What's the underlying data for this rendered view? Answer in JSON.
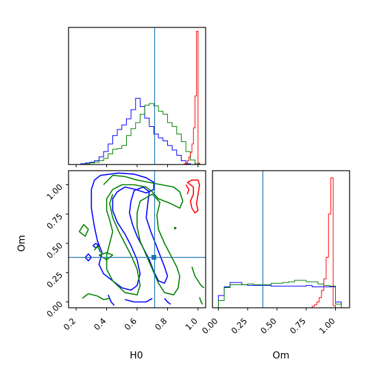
{
  "chart_data": {
    "type": "corner",
    "parameters": [
      "H0",
      "Om"
    ],
    "xlabel_h0": "H0",
    "xlabel_om": "Om",
    "ylabel_om": "Om",
    "truth": {
      "H0": 0.715,
      "Om": 0.38
    },
    "ranges": {
      "H0": [
        0.15,
        1.05
      ],
      "Om": [
        -0.05,
        1.12
      ]
    },
    "ticks": {
      "H0": [
        0.2,
        0.4,
        0.6,
        0.8,
        1.0
      ],
      "H0_labels": [
        "0.2",
        "0.4",
        "0.6",
        "0.8",
        "1.0"
      ],
      "Om": [
        0.0,
        0.25,
        0.5,
        0.75,
        1.0
      ],
      "Om_labels": [
        "0.00",
        "0.25",
        "0.50",
        "0.75",
        "1.00"
      ]
    },
    "colors": {
      "blue": "#0000ff",
      "green": "#008000",
      "red": "#ff0000",
      "truth": "#1f77b4"
    },
    "hist_H0": {
      "bin_edges": [
        0.2,
        0.23,
        0.26,
        0.29,
        0.32,
        0.35,
        0.38,
        0.41,
        0.44,
        0.47,
        0.5,
        0.53,
        0.56,
        0.59,
        0.62,
        0.65,
        0.68,
        0.71,
        0.74,
        0.77,
        0.8,
        0.83,
        0.86,
        0.89,
        0.92,
        0.95,
        0.98,
        1.01
      ],
      "series": [
        {
          "color": "blue",
          "values": [
            0,
            1,
            2,
            3,
            5,
            10,
            17,
            27,
            38,
            46,
            52,
            60,
            72,
            87,
            76,
            61,
            50,
            40,
            35,
            31,
            25,
            19,
            12,
            5,
            1,
            0,
            0
          ]
        },
        {
          "color": "green",
          "values": [
            0,
            0,
            1,
            2,
            3,
            5,
            8,
            14,
            20,
            21,
            25,
            38,
            47,
            55,
            66,
            78,
            80,
            77,
            70,
            66,
            55,
            50,
            40,
            30,
            17,
            6,
            1
          ]
        }
      ],
      "red": {
        "bin_edges": [
          0.9,
          0.91,
          0.92,
          0.93,
          0.94,
          0.95,
          0.96,
          0.97,
          0.98,
          0.99,
          1.0,
          1.01,
          1.02
        ],
        "values": [
          0,
          1,
          2,
          5,
          10,
          16,
          27,
          48,
          90,
          175,
          2,
          0
        ]
      }
    },
    "hist_Om": {
      "bin_edges": [
        -0.05,
        0.0,
        0.05,
        0.1,
        0.15,
        0.2,
        0.25,
        0.3,
        0.35,
        0.4,
        0.45,
        0.5,
        0.55,
        0.6,
        0.65,
        0.7,
        0.75,
        0.8,
        0.85,
        0.9,
        0.95,
        1.0,
        1.05
      ],
      "series": [
        {
          "color": "blue",
          "values": [
            0,
            17,
            29,
            35,
            35,
            32,
            31,
            31,
            31,
            31,
            30,
            30,
            30,
            30,
            30,
            30,
            31,
            29,
            29,
            29,
            29,
            8
          ]
        },
        {
          "color": "green",
          "values": [
            0,
            10,
            28,
            32,
            32,
            32,
            33,
            32,
            32,
            32,
            34,
            34,
            35,
            36,
            38,
            38,
            36,
            36,
            33,
            31,
            30,
            5
          ]
        }
      ],
      "red": {
        "bin_edges": [
          0.8,
          0.82,
          0.84,
          0.86,
          0.88,
          0.9,
          0.92,
          0.94,
          0.96,
          0.98,
          1.0
        ],
        "values": [
          2,
          4,
          8,
          14,
          24,
          40,
          70,
          130,
          180,
          3
        ]
      }
    },
    "contours": {
      "blue": [
        [
          [
            0.36,
            1.08
          ],
          [
            0.48,
            1.1
          ],
          [
            0.58,
            1.09
          ],
          [
            0.66,
            1.06
          ],
          [
            0.71,
            1.02
          ],
          [
            0.71,
            0.96
          ],
          [
            0.66,
            0.93
          ],
          [
            0.59,
            0.96
          ],
          [
            0.52,
            0.98
          ],
          [
            0.47,
            0.94
          ],
          [
            0.44,
            0.88
          ],
          [
            0.44,
            0.78
          ],
          [
            0.47,
            0.68
          ],
          [
            0.52,
            0.58
          ],
          [
            0.56,
            0.48
          ],
          [
            0.6,
            0.36
          ],
          [
            0.62,
            0.24
          ],
          [
            0.6,
            0.14
          ],
          [
            0.56,
            0.1
          ],
          [
            0.5,
            0.12
          ],
          [
            0.44,
            0.18
          ],
          [
            0.38,
            0.24
          ],
          [
            0.35,
            0.32
          ],
          [
            0.37,
            0.42
          ],
          [
            0.34,
            0.52
          ],
          [
            0.32,
            0.64
          ],
          [
            0.3,
            0.8
          ],
          [
            0.3,
            0.96
          ],
          [
            0.32,
            1.04
          ],
          [
            0.36,
            1.08
          ]
        ],
        [
          [
            0.58,
            0.95
          ],
          [
            0.64,
            0.98
          ],
          [
            0.68,
            0.94
          ],
          [
            0.67,
            0.84
          ],
          [
            0.66,
            0.72
          ],
          [
            0.69,
            0.6
          ],
          [
            0.72,
            0.5
          ],
          [
            0.75,
            0.4
          ],
          [
            0.78,
            0.3
          ],
          [
            0.8,
            0.22
          ],
          [
            0.78,
            0.16
          ],
          [
            0.74,
            0.18
          ],
          [
            0.71,
            0.26
          ],
          [
            0.68,
            0.36
          ],
          [
            0.64,
            0.46
          ],
          [
            0.6,
            0.56
          ],
          [
            0.57,
            0.66
          ],
          [
            0.55,
            0.76
          ],
          [
            0.56,
            0.86
          ],
          [
            0.58,
            0.95
          ]
        ],
        [
          [
            0.41,
            0.06
          ],
          [
            0.43,
            0.0
          ],
          [
            0.45,
            -0.03
          ]
        ],
        [
          [
            0.52,
            0.02
          ],
          [
            0.58,
            0.0
          ],
          [
            0.66,
            0.0
          ],
          [
            0.7,
            0.03
          ]
        ],
        [
          [
            0.78,
            0.03
          ],
          [
            0.8,
            0.0
          ],
          [
            0.82,
            -0.02
          ]
        ],
        [
          [
            0.26,
            0.38
          ],
          [
            0.28,
            0.41
          ],
          [
            0.3,
            0.38
          ],
          [
            0.28,
            0.35
          ],
          [
            0.26,
            0.38
          ]
        ],
        [
          [
            0.31,
            0.48
          ],
          [
            0.33,
            0.5
          ],
          [
            0.35,
            0.48
          ],
          [
            0.33,
            0.46
          ],
          [
            0.31,
            0.48
          ]
        ]
      ],
      "green": [
        [
          [
            0.38,
            1.0
          ],
          [
            0.44,
            1.08
          ],
          [
            0.52,
            1.07
          ],
          [
            0.6,
            1.04
          ],
          [
            0.68,
            1.02
          ],
          [
            0.76,
            1.0
          ],
          [
            0.84,
            0.98
          ],
          [
            0.88,
            0.94
          ],
          [
            0.9,
            0.86
          ],
          [
            0.88,
            0.8
          ],
          [
            0.82,
            0.84
          ],
          [
            0.74,
            0.88
          ],
          [
            0.7,
            0.94
          ],
          [
            0.66,
            0.98
          ],
          [
            0.58,
            1.0
          ],
          [
            0.5,
            1.0
          ],
          [
            0.44,
            0.96
          ],
          [
            0.4,
            0.88
          ],
          [
            0.4,
            0.78
          ],
          [
            0.42,
            0.7
          ],
          [
            0.44,
            0.6
          ],
          [
            0.42,
            0.5
          ],
          [
            0.4,
            0.4
          ],
          [
            0.4,
            0.28
          ],
          [
            0.44,
            0.18
          ],
          [
            0.52,
            0.08
          ],
          [
            0.6,
            0.06
          ],
          [
            0.62,
            0.14
          ],
          [
            0.6,
            0.28
          ],
          [
            0.56,
            0.4
          ],
          [
            0.52,
            0.5
          ],
          [
            0.48,
            0.6
          ],
          [
            0.44,
            0.72
          ],
          [
            0.42,
            0.84
          ],
          [
            0.44,
            0.92
          ]
        ],
        [
          [
            0.62,
            0.86
          ],
          [
            0.7,
            0.92
          ],
          [
            0.75,
            0.85
          ],
          [
            0.73,
            0.74
          ],
          [
            0.74,
            0.62
          ],
          [
            0.78,
            0.5
          ],
          [
            0.82,
            0.4
          ],
          [
            0.86,
            0.3
          ],
          [
            0.88,
            0.22
          ],
          [
            0.87,
            0.12
          ],
          [
            0.84,
            0.06
          ],
          [
            0.78,
            0.08
          ],
          [
            0.74,
            0.16
          ],
          [
            0.7,
            0.28
          ],
          [
            0.66,
            0.4
          ],
          [
            0.62,
            0.52
          ],
          [
            0.6,
            0.64
          ],
          [
            0.6,
            0.76
          ],
          [
            0.62,
            0.86
          ]
        ],
        [
          [
            0.24,
            0.03
          ],
          [
            0.28,
            0.07
          ],
          [
            0.34,
            0.05
          ],
          [
            0.38,
            0.02
          ],
          [
            0.42,
            0.03
          ]
        ],
        [
          [
            0.22,
            0.6
          ],
          [
            0.25,
            0.66
          ],
          [
            0.28,
            0.62
          ],
          [
            0.26,
            0.56
          ],
          [
            0.22,
            0.6
          ]
        ],
        [
          [
            0.32,
            0.44
          ],
          [
            0.34,
            0.48
          ],
          [
            0.36,
            0.42
          ]
        ],
        [
          [
            0.35,
            0.4
          ],
          [
            0.4,
            0.42
          ],
          [
            0.44,
            0.4
          ],
          [
            0.4,
            0.36
          ],
          [
            0.35,
            0.4
          ]
        ],
        [
          [
            0.96,
            0.3
          ],
          [
            0.98,
            0.22
          ],
          [
            1.02,
            0.14
          ],
          [
            1.04,
            0.12
          ]
        ],
        [
          [
            1.01,
            0.04
          ],
          [
            1.02,
            0.0
          ],
          [
            1.03,
            -0.02
          ]
        ]
      ],
      "red": [
        [
          [
            0.93,
            1.02
          ],
          [
            0.96,
            1.04
          ],
          [
            1.0,
            1.04
          ],
          [
            1.01,
            1.0
          ],
          [
            1.0,
            0.92
          ],
          [
            0.99,
            0.84
          ],
          [
            1.0,
            0.78
          ],
          [
            0.98,
            0.76
          ],
          [
            0.96,
            0.8
          ],
          [
            0.95,
            0.86
          ],
          [
            0.97,
            0.92
          ],
          [
            0.97,
            0.98
          ],
          [
            0.95,
            1.0
          ],
          [
            0.93,
            1.02
          ]
        ],
        [
          [
            0.92,
            1.0
          ],
          [
            0.94,
            0.96
          ],
          [
            0.93,
            0.92
          ]
        ]
      ]
    },
    "green_dot": {
      "H0": 0.85,
      "Om": 0.63
    },
    "truth_marker": {
      "H0": 0.71,
      "Om": 0.38
    }
  }
}
